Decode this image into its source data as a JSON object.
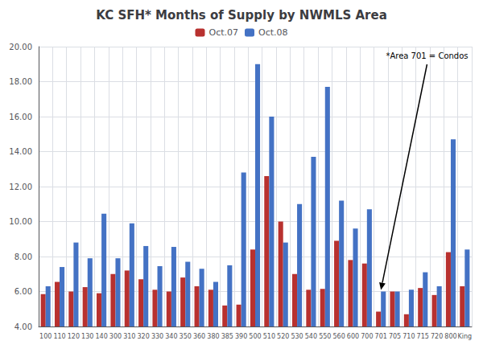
{
  "chart_data": {
    "type": "bar",
    "title": "KC SFH* Months of Supply by NWMLS Area",
    "annotation": {
      "text": "*Area 701 = Condos",
      "x": "701",
      "y": 6.0
    },
    "categories": [
      "100",
      "110",
      "120",
      "130",
      "140",
      "300",
      "310",
      "320",
      "330",
      "340",
      "350",
      "360",
      "380",
      "385",
      "390",
      "500",
      "510",
      "520",
      "530",
      "540",
      "550",
      "560",
      "600",
      "700",
      "701",
      "705",
      "710",
      "715",
      "720",
      "800",
      "King"
    ],
    "series": [
      {
        "name": "Oct.07",
        "color": "#B8312F",
        "values": [
          5.85,
          6.55,
          6.0,
          6.25,
          5.9,
          7.0,
          7.2,
          6.7,
          6.1,
          6.0,
          6.8,
          6.3,
          6.1,
          5.2,
          5.25,
          8.4,
          12.6,
          10.0,
          7.0,
          6.1,
          6.15,
          8.9,
          7.8,
          7.6,
          4.85,
          6.0,
          4.7,
          6.2,
          5.8,
          8.25,
          6.3
        ]
      },
      {
        "name": "Oct.08",
        "color": "#4472C4",
        "values": [
          6.3,
          7.4,
          8.8,
          7.9,
          10.45,
          7.9,
          9.9,
          8.6,
          7.45,
          8.55,
          7.7,
          7.3,
          6.55,
          7.5,
          12.8,
          19.0,
          16.0,
          8.8,
          11.0,
          13.7,
          17.7,
          11.2,
          9.6,
          10.7,
          6.0,
          6.0,
          6.1,
          7.1,
          6.3,
          14.7,
          8.4
        ]
      }
    ],
    "ylim": [
      4.0,
      20.0
    ],
    "yticks": [
      {
        "value": 4.0,
        "label": "4.00"
      },
      {
        "value": 6.0,
        "label": "6.00"
      },
      {
        "value": 8.0,
        "label": "8.00"
      },
      {
        "value": 10.0,
        "label": "10.00"
      },
      {
        "value": 12.0,
        "label": "12.00"
      },
      {
        "value": 14.0,
        "label": "14.00"
      },
      {
        "value": 16.0,
        "label": "16.00"
      },
      {
        "value": 18.0,
        "label": "18.00"
      },
      {
        "value": 20.0,
        "label": "20.00"
      }
    ],
    "grid": true,
    "legend": "top"
  }
}
